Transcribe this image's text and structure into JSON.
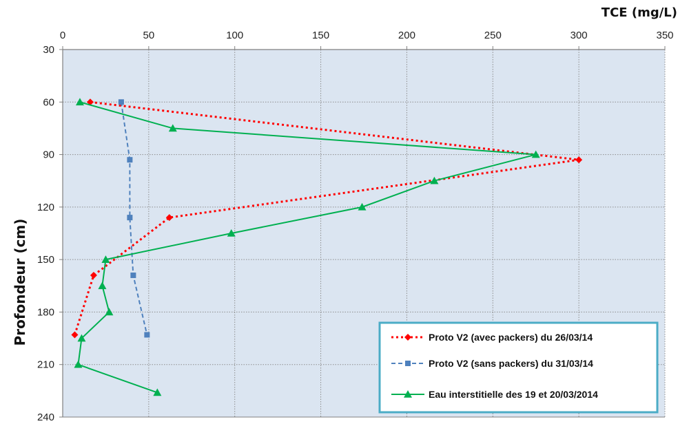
{
  "chart_data": {
    "type": "line",
    "title": "",
    "xlabel": "TCE (mg/L)",
    "ylabel": "Profondeur (cm)",
    "xlim": [
      0,
      350
    ],
    "ylim": [
      240,
      30
    ],
    "y_inverted": true,
    "xticks": [
      0,
      50,
      100,
      150,
      200,
      250,
      300,
      350
    ],
    "yticks": [
      30,
      60,
      90,
      120,
      150,
      180,
      210,
      240
    ],
    "x_axis_position": "top",
    "grid": true,
    "legend_position": "bottom-right",
    "colors": {
      "plot_bg": "#dbe5f1",
      "grid": "#8c8c8c",
      "legend_border": "#4bacc6"
    },
    "series": [
      {
        "name": "Proto V2 (avec packers)  du 26/03/14",
        "color": "#ff0000",
        "line_style": "dotted",
        "marker": "diamond",
        "points": [
          [
            16,
            60
          ],
          [
            300,
            93
          ],
          [
            62,
            126
          ],
          [
            18,
            159
          ],
          [
            7,
            193
          ]
        ]
      },
      {
        "name": "Proto V2 (sans packers)  du 31/03/14",
        "color": "#4f81bd",
        "line_style": "dashed",
        "marker": "square",
        "points": [
          [
            34,
            60
          ],
          [
            39,
            93
          ],
          [
            39,
            126
          ],
          [
            41,
            159
          ],
          [
            49,
            193
          ]
        ]
      },
      {
        "name": "Eau interstitielle des 19 et 20/03/2014",
        "color": "#00b050",
        "line_style": "solid",
        "marker": "triangle",
        "points": [
          [
            10,
            60
          ],
          [
            64,
            75
          ],
          [
            275,
            90
          ],
          [
            216,
            105
          ],
          [
            174,
            120
          ],
          [
            98,
            135
          ],
          [
            25,
            150
          ],
          [
            23,
            165
          ],
          [
            27,
            180
          ],
          [
            11,
            195
          ],
          [
            9,
            210
          ],
          [
            55,
            226
          ]
        ]
      }
    ]
  }
}
